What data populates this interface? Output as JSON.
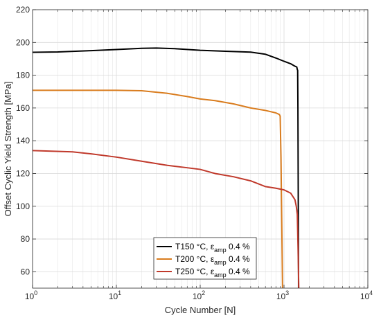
{
  "chart_data": {
    "type": "line",
    "xlabel": "Cycle Number [N]",
    "ylabel": "Offset Cyclic Yield Strength [MPa]",
    "xscale": "log",
    "xlim": [
      1,
      10000
    ],
    "ylim": [
      50,
      220
    ],
    "grid": true,
    "legend_position": "bottom-center",
    "x_ticks": [
      {
        "value": 1,
        "base": "10",
        "exp": "0"
      },
      {
        "value": 10,
        "base": "10",
        "exp": "1"
      },
      {
        "value": 100,
        "base": "10",
        "exp": "2"
      },
      {
        "value": 1000,
        "base": "10",
        "exp": "3"
      },
      {
        "value": 10000,
        "base": "10",
        "exp": "4"
      }
    ],
    "y_ticks": [
      60,
      80,
      100,
      120,
      140,
      160,
      180,
      200,
      220
    ],
    "series": [
      {
        "name": "T150 °C, ε_amp 0.4 %",
        "legend": {
          "main": "T150 °C, ε",
          "sub": "amp",
          "tail": " 0.4 %"
        },
        "color": "#000000",
        "points": [
          [
            1,
            194
          ],
          [
            2,
            194.2
          ],
          [
            5,
            195
          ],
          [
            10,
            195.7
          ],
          [
            20,
            196.4
          ],
          [
            30,
            196.6
          ],
          [
            50,
            196.2
          ],
          [
            100,
            195.2
          ],
          [
            200,
            194.6
          ],
          [
            400,
            194.1
          ],
          [
            600,
            192.8
          ],
          [
            800,
            190.5
          ],
          [
            1000,
            188.5
          ],
          [
            1200,
            187
          ],
          [
            1350,
            185.5
          ],
          [
            1420,
            185
          ],
          [
            1440,
            183.5
          ],
          [
            1455,
            183
          ],
          [
            1465,
            160
          ],
          [
            1475,
            120
          ],
          [
            1485,
            80
          ],
          [
            1490,
            50
          ]
        ]
      },
      {
        "name": "T200 °C, ε_amp 0.4 %",
        "legend": {
          "main": "T200 °C, ε",
          "sub": "amp",
          "tail": " 0.4 %"
        },
        "color": "#D97C1E",
        "points": [
          [
            1,
            170.8
          ],
          [
            5,
            170.8
          ],
          [
            10,
            170.8
          ],
          [
            20,
            170.5
          ],
          [
            40,
            169
          ],
          [
            70,
            167
          ],
          [
            100,
            165.5
          ],
          [
            150,
            164.5
          ],
          [
            250,
            162.5
          ],
          [
            400,
            160
          ],
          [
            600,
            158.5
          ],
          [
            800,
            157
          ],
          [
            880,
            156
          ],
          [
            900,
            155
          ],
          [
            920,
            130
          ],
          [
            940,
            90
          ],
          [
            960,
            50
          ]
        ]
      },
      {
        "name": "T250 °C, ε_amp 0.4 %",
        "legend": {
          "main": "T250 °C, ε",
          "sub": "amp",
          "tail": " 0.4 %"
        },
        "color": "#C0392B",
        "points": [
          [
            1,
            134
          ],
          [
            3,
            133.2
          ],
          [
            5,
            132
          ],
          [
            10,
            130
          ],
          [
            20,
            127.5
          ],
          [
            40,
            125
          ],
          [
            70,
            123.5
          ],
          [
            100,
            122.5
          ],
          [
            150,
            120
          ],
          [
            250,
            118
          ],
          [
            400,
            115.5
          ],
          [
            600,
            112
          ],
          [
            800,
            111
          ],
          [
            1000,
            110
          ],
          [
            1200,
            108
          ],
          [
            1350,
            104
          ],
          [
            1400,
            100
          ],
          [
            1440,
            95
          ],
          [
            1470,
            75
          ],
          [
            1500,
            50
          ]
        ]
      }
    ]
  }
}
